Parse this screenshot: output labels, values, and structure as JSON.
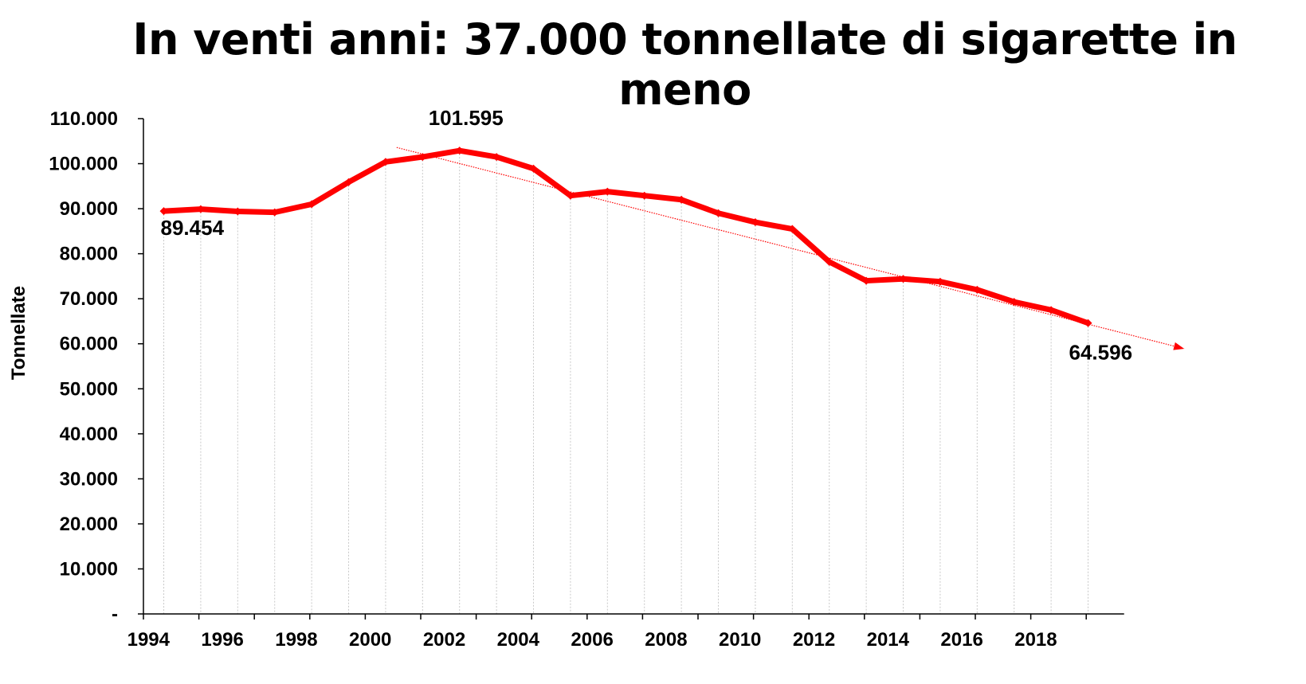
{
  "chart_data": {
    "type": "line",
    "title": "In venti anni: 37.000 tonnellate di sigarette in meno",
    "ylabel": "Tonnellate",
    "xlabel": "",
    "ylim": [
      0,
      110000
    ],
    "y_ticks": [
      "-",
      "10.000",
      "20.000",
      "30.000",
      "40.000",
      "50.000",
      "60.000",
      "70.000",
      "80.000",
      "90.000",
      "100.000",
      "110.000"
    ],
    "x_ticks": [
      "1994",
      "1996",
      "1998",
      "2000",
      "2002",
      "2004",
      "2006",
      "2008",
      "2010",
      "2012",
      "2014",
      "2016",
      "2018"
    ],
    "x_tick_positions": [
      1993.5,
      1995.5,
      1997.5,
      1999.5,
      2001.5,
      2003.5,
      2005.5,
      2007.5,
      2009.5,
      2011.5,
      2013.5,
      2015.5,
      2017.5
    ],
    "series": [
      {
        "name": "",
        "color": "#ff0000",
        "x": [
          1994,
          1995,
          1996,
          1997,
          1998,
          1999,
          2000,
          2001,
          2002,
          2003,
          2004,
          2005,
          2006,
          2007,
          2008,
          2009,
          2010,
          2011,
          2012,
          2013,
          2014,
          2015,
          2016,
          2017,
          2018,
          2019
        ],
        "values": [
          89454,
          89900,
          89400,
          89200,
          91000,
          95900,
          100400,
          101500,
          102900,
          101500,
          98900,
          92900,
          93800,
          92900,
          92000,
          89000,
          87000,
          85500,
          78200,
          74000,
          74400,
          73800,
          72000,
          69300,
          67500,
          64596
        ]
      }
    ],
    "trendline": {
      "color": "#ff0000",
      "x": [
        2000.3,
        2021.6
      ],
      "values": [
        103600,
        58900
      ]
    },
    "annotations": [
      {
        "text": "89.454",
        "x": 1994,
        "value": 89454,
        "position": "below"
      },
      {
        "text": "101.595",
        "x": 2002,
        "value": 101595,
        "position": "above"
      },
      {
        "text": "64.596",
        "x": 2019,
        "value": 64596,
        "position": "below"
      }
    ],
    "grid": {
      "vertical": true,
      "horizontal": false
    },
    "legend": "none"
  }
}
